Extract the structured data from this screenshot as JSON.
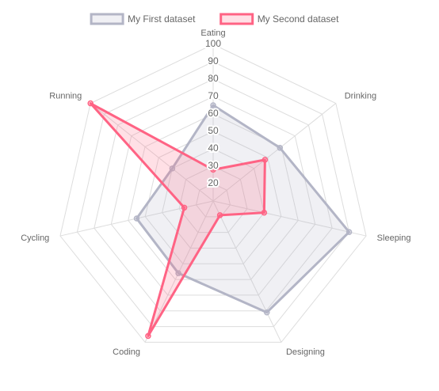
{
  "chart_data": {
    "type": "radar",
    "categories": [
      "Eating",
      "Drinking",
      "Sleeping",
      "Designing",
      "Coding",
      "Cycling",
      "Running"
    ],
    "series": [
      {
        "name": "My First dataset",
        "color": "#b3b5c6",
        "values": [
          65,
          59,
          90,
          81,
          56,
          55,
          40
        ]
      },
      {
        "name": "My Second dataset",
        "color": "#ff6384",
        "values": [
          28,
          48,
          40,
          19,
          96,
          27,
          100
        ]
      }
    ],
    "ylim": [
      10,
      100
    ],
    "yticks": [
      20,
      30,
      40,
      50,
      60,
      70,
      80,
      90,
      100
    ],
    "grid": true,
    "legend": "top"
  }
}
